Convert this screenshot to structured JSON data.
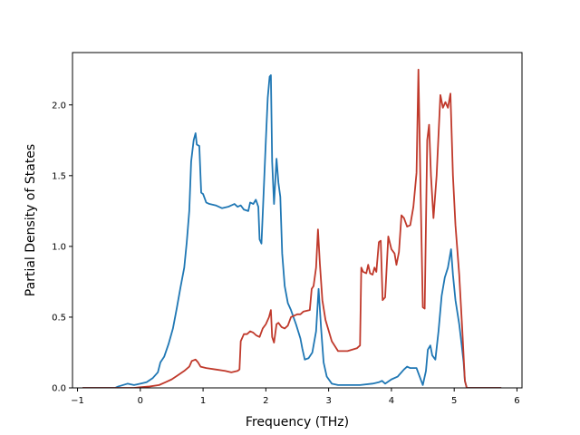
{
  "chart_data": {
    "type": "line",
    "title": "",
    "xlabel": "Frequency (THz)",
    "ylabel": "Partial Density of States",
    "xlim": [
      -1.08,
      6.08
    ],
    "ylim": [
      0.0,
      2.37
    ],
    "xticks": [
      -1,
      0,
      1,
      2,
      3,
      4,
      5,
      6
    ],
    "xtick_labels": [
      "−1",
      "0",
      "1",
      "2",
      "3",
      "4",
      "5",
      "6"
    ],
    "yticks": [
      0.0,
      0.5,
      1.0,
      1.5,
      2.0
    ],
    "ytick_labels": [
      "0.0",
      "0.5",
      "1.0",
      "1.5",
      "2.0"
    ],
    "grid": false,
    "series": [
      {
        "color": "#1f77b4",
        "points": [
          [
            -0.92,
            0.0
          ],
          [
            -0.4,
            0.0
          ],
          [
            -0.35,
            0.01
          ],
          [
            -0.2,
            0.03
          ],
          [
            -0.1,
            0.02
          ],
          [
            0.0,
            0.03
          ],
          [
            0.1,
            0.04
          ],
          [
            0.2,
            0.07
          ],
          [
            0.28,
            0.11
          ],
          [
            0.32,
            0.18
          ],
          [
            0.38,
            0.22
          ],
          [
            0.45,
            0.31
          ],
          [
            0.52,
            0.42
          ],
          [
            0.58,
            0.56
          ],
          [
            0.64,
            0.71
          ],
          [
            0.7,
            0.85
          ],
          [
            0.74,
            1.03
          ],
          [
            0.78,
            1.25
          ],
          [
            0.81,
            1.6
          ],
          [
            0.85,
            1.75
          ],
          [
            0.88,
            1.8
          ],
          [
            0.9,
            1.72
          ],
          [
            0.94,
            1.71
          ],
          [
            0.97,
            1.38
          ],
          [
            1.0,
            1.37
          ],
          [
            1.05,
            1.31
          ],
          [
            1.1,
            1.3
          ],
          [
            1.2,
            1.29
          ],
          [
            1.3,
            1.27
          ],
          [
            1.4,
            1.28
          ],
          [
            1.5,
            1.3
          ],
          [
            1.55,
            1.28
          ],
          [
            1.6,
            1.29
          ],
          [
            1.65,
            1.26
          ],
          [
            1.72,
            1.25
          ],
          [
            1.75,
            1.31
          ],
          [
            1.8,
            1.3
          ],
          [
            1.84,
            1.33
          ],
          [
            1.88,
            1.28
          ],
          [
            1.9,
            1.05
          ],
          [
            1.93,
            1.02
          ],
          [
            1.96,
            1.33
          ],
          [
            2.0,
            1.75
          ],
          [
            2.03,
            2.05
          ],
          [
            2.06,
            2.2
          ],
          [
            2.08,
            2.21
          ],
          [
            2.1,
            1.6
          ],
          [
            2.13,
            1.3
          ],
          [
            2.17,
            1.62
          ],
          [
            2.2,
            1.45
          ],
          [
            2.23,
            1.35
          ],
          [
            2.26,
            0.95
          ],
          [
            2.3,
            0.72
          ],
          [
            2.35,
            0.6
          ],
          [
            2.4,
            0.55
          ],
          [
            2.48,
            0.45
          ],
          [
            2.55,
            0.35
          ],
          [
            2.58,
            0.28
          ],
          [
            2.62,
            0.2
          ],
          [
            2.68,
            0.21
          ],
          [
            2.74,
            0.25
          ],
          [
            2.8,
            0.4
          ],
          [
            2.84,
            0.7
          ],
          [
            2.88,
            0.42
          ],
          [
            2.92,
            0.18
          ],
          [
            2.97,
            0.08
          ],
          [
            3.05,
            0.03
          ],
          [
            3.15,
            0.02
          ],
          [
            3.3,
            0.02
          ],
          [
            3.5,
            0.02
          ],
          [
            3.7,
            0.03
          ],
          [
            3.8,
            0.04
          ],
          [
            3.85,
            0.05
          ],
          [
            3.9,
            0.03
          ],
          [
            4.0,
            0.06
          ],
          [
            4.1,
            0.08
          ],
          [
            4.2,
            0.13
          ],
          [
            4.25,
            0.15
          ],
          [
            4.3,
            0.14
          ],
          [
            4.4,
            0.14
          ],
          [
            4.45,
            0.08
          ],
          [
            4.5,
            0.02
          ],
          [
            4.55,
            0.12
          ],
          [
            4.58,
            0.27
          ],
          [
            4.62,
            0.3
          ],
          [
            4.65,
            0.23
          ],
          [
            4.7,
            0.2
          ],
          [
            4.75,
            0.4
          ],
          [
            4.8,
            0.65
          ],
          [
            4.85,
            0.78
          ],
          [
            4.9,
            0.85
          ],
          [
            4.95,
            0.98
          ],
          [
            4.98,
            0.8
          ],
          [
            5.02,
            0.62
          ],
          [
            5.08,
            0.45
          ],
          [
            5.12,
            0.3
          ],
          [
            5.15,
            0.18
          ],
          [
            5.17,
            0.05
          ],
          [
            5.2,
            0.0
          ],
          [
            5.75,
            0.0
          ]
        ]
      },
      {
        "color": "#c0392b",
        "points": [
          [
            -0.92,
            0.0
          ],
          [
            -0.1,
            0.0
          ],
          [
            0.0,
            0.005
          ],
          [
            0.15,
            0.01
          ],
          [
            0.3,
            0.02
          ],
          [
            0.4,
            0.04
          ],
          [
            0.5,
            0.06
          ],
          [
            0.6,
            0.09
          ],
          [
            0.7,
            0.12
          ],
          [
            0.78,
            0.15
          ],
          [
            0.82,
            0.19
          ],
          [
            0.88,
            0.2
          ],
          [
            0.92,
            0.18
          ],
          [
            0.96,
            0.15
          ],
          [
            1.05,
            0.14
          ],
          [
            1.2,
            0.13
          ],
          [
            1.35,
            0.12
          ],
          [
            1.45,
            0.11
          ],
          [
            1.55,
            0.12
          ],
          [
            1.58,
            0.13
          ],
          [
            1.6,
            0.33
          ],
          [
            1.65,
            0.38
          ],
          [
            1.7,
            0.38
          ],
          [
            1.75,
            0.4
          ],
          [
            1.8,
            0.39
          ],
          [
            1.85,
            0.37
          ],
          [
            1.9,
            0.36
          ],
          [
            1.95,
            0.42
          ],
          [
            2.0,
            0.45
          ],
          [
            2.05,
            0.5
          ],
          [
            2.08,
            0.55
          ],
          [
            2.1,
            0.36
          ],
          [
            2.13,
            0.32
          ],
          [
            2.17,
            0.45
          ],
          [
            2.2,
            0.46
          ],
          [
            2.25,
            0.43
          ],
          [
            2.3,
            0.42
          ],
          [
            2.35,
            0.44
          ],
          [
            2.4,
            0.5
          ],
          [
            2.5,
            0.52
          ],
          [
            2.55,
            0.52
          ],
          [
            2.6,
            0.54
          ],
          [
            2.7,
            0.55
          ],
          [
            2.73,
            0.7
          ],
          [
            2.76,
            0.72
          ],
          [
            2.8,
            0.85
          ],
          [
            2.83,
            1.12
          ],
          [
            2.86,
            0.88
          ],
          [
            2.9,
            0.62
          ],
          [
            2.95,
            0.48
          ],
          [
            3.05,
            0.33
          ],
          [
            3.15,
            0.26
          ],
          [
            3.3,
            0.26
          ],
          [
            3.45,
            0.28
          ],
          [
            3.5,
            0.3
          ],
          [
            3.52,
            0.85
          ],
          [
            3.55,
            0.82
          ],
          [
            3.6,
            0.81
          ],
          [
            3.63,
            0.87
          ],
          [
            3.66,
            0.81
          ],
          [
            3.7,
            0.8
          ],
          [
            3.73,
            0.85
          ],
          [
            3.76,
            0.82
          ],
          [
            3.8,
            1.03
          ],
          [
            3.83,
            1.04
          ],
          [
            3.86,
            0.62
          ],
          [
            3.9,
            0.64
          ],
          [
            3.95,
            1.07
          ],
          [
            4.0,
            0.98
          ],
          [
            4.05,
            0.95
          ],
          [
            4.08,
            0.87
          ],
          [
            4.12,
            0.96
          ],
          [
            4.16,
            1.22
          ],
          [
            4.2,
            1.2
          ],
          [
            4.25,
            1.14
          ],
          [
            4.3,
            1.15
          ],
          [
            4.35,
            1.28
          ],
          [
            4.4,
            1.52
          ],
          [
            4.43,
            2.25
          ],
          [
            4.46,
            1.5
          ],
          [
            4.5,
            0.57
          ],
          [
            4.53,
            0.56
          ],
          [
            4.57,
            1.75
          ],
          [
            4.6,
            1.86
          ],
          [
            4.63,
            1.5
          ],
          [
            4.67,
            1.2
          ],
          [
            4.72,
            1.5
          ],
          [
            4.78,
            2.07
          ],
          [
            4.82,
            1.98
          ],
          [
            4.86,
            2.02
          ],
          [
            4.9,
            1.98
          ],
          [
            4.94,
            2.08
          ],
          [
            4.98,
            1.5
          ],
          [
            5.02,
            1.15
          ],
          [
            5.08,
            0.8
          ],
          [
            5.13,
            0.4
          ],
          [
            5.17,
            0.05
          ],
          [
            5.2,
            0.0
          ],
          [
            5.75,
            0.0
          ]
        ]
      }
    ]
  }
}
